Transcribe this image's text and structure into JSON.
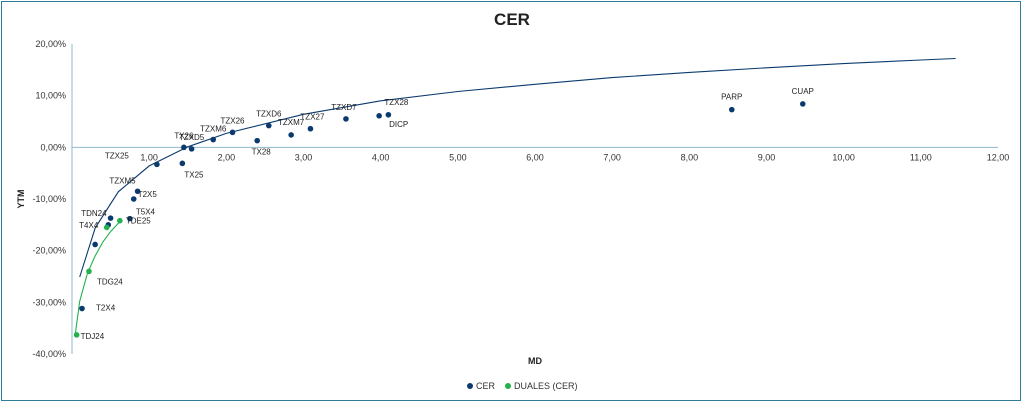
{
  "chart_data": {
    "type": "scatter",
    "title": "CER",
    "xlabel": "MD",
    "ylabel": "YTM",
    "xlim": [
      0,
      12
    ],
    "ylim": [
      -40,
      20
    ],
    "x_ticks": [
      "1,00",
      "2,00",
      "3,00",
      "4,00",
      "5,00",
      "6,00",
      "7,00",
      "8,00",
      "9,00",
      "10,00",
      "11,00",
      "12,00"
    ],
    "y_ticks": [
      "20,00%",
      "10,00%",
      "0,00%",
      "-10,00%",
      "-20,00%",
      "-30,00%",
      "-40,00%"
    ],
    "grid": false,
    "legend_position": "bottom",
    "series": [
      {
        "name": "CER",
        "color": "#0b3a6e",
        "points": [
          {
            "label": "T2X4",
            "x": 0.13,
            "y": -31.2
          },
          {
            "label": "",
            "x": 0.3,
            "y": -18.8
          },
          {
            "label": "T4X4",
            "x": 0.47,
            "y": -15.0
          },
          {
            "label": "TDN24",
            "x": 0.5,
            "y": -13.7
          },
          {
            "label": "T5X4",
            "x": 0.75,
            "y": -13.8
          },
          {
            "label": "T2X5",
            "x": 0.8,
            "y": -10.0
          },
          {
            "label": "TZXM5",
            "x": 0.85,
            "y": -8.5
          },
          {
            "label": "TZX25",
            "x": 1.1,
            "y": -3.3
          },
          {
            "label": "TX25",
            "x": 1.43,
            "y": -3.1
          },
          {
            "label": "TX26",
            "x": 1.45,
            "y": 0.0
          },
          {
            "label": "TZXD5",
            "x": 1.55,
            "y": -0.3
          },
          {
            "label": "TZXM6",
            "x": 1.83,
            "y": 1.5
          },
          {
            "label": "TZX26",
            "x": 2.08,
            "y": 2.9
          },
          {
            "label": "TX28",
            "x": 2.4,
            "y": 1.3
          },
          {
            "label": "TZXD6",
            "x": 2.55,
            "y": 4.2
          },
          {
            "label": "TZXM7",
            "x": 2.84,
            "y": 2.4
          },
          {
            "label": "TZX27",
            "x": 3.09,
            "y": 3.6
          },
          {
            "label": "TZXD7",
            "x": 3.55,
            "y": 5.5
          },
          {
            "label": "DICP",
            "x": 3.98,
            "y": 6.1
          },
          {
            "label": "TZX28",
            "x": 4.1,
            "y": 6.3
          },
          {
            "label": "PARP",
            "x": 8.55,
            "y": 7.3
          },
          {
            "label": "CUAP",
            "x": 9.47,
            "y": 8.4
          }
        ],
        "trendline": true
      },
      {
        "name": "DUALES (CER)",
        "color": "#22b14c",
        "points": [
          {
            "label": "TDJ24",
            "x": 0.06,
            "y": -36.3
          },
          {
            "label": "TDG24",
            "x": 0.22,
            "y": -24.0
          },
          {
            "label": "",
            "x": 0.45,
            "y": -15.5
          },
          {
            "label": "TDE25",
            "x": 0.62,
            "y": -14.2
          }
        ],
        "trendline": true
      }
    ],
    "trendlines": [
      {
        "series": "CER",
        "color": "#0b3a6e",
        "x": [
          0.1,
          0.3,
          0.6,
          1.0,
          1.5,
          2.0,
          3.0,
          4.0,
          5.0,
          6.0,
          7.0,
          8.0,
          9.0,
          10.0,
          11.0,
          11.45
        ],
        "y": [
          -25.1,
          -15.6,
          -8.6,
          -3.6,
          0.1,
          2.7,
          6.4,
          9.0,
          10.8,
          12.2,
          13.5,
          14.5,
          15.4,
          16.2,
          16.9,
          17.2
        ]
      },
      {
        "series": "DUALES (CER)",
        "color": "#22b14c",
        "x": [
          0.04,
          0.1,
          0.2,
          0.3,
          0.4,
          0.5,
          0.6,
          0.65
        ],
        "y": [
          -36.4,
          -29.8,
          -24.4,
          -21.0,
          -18.3,
          -16.3,
          -14.7,
          -14.2
        ]
      }
    ]
  }
}
